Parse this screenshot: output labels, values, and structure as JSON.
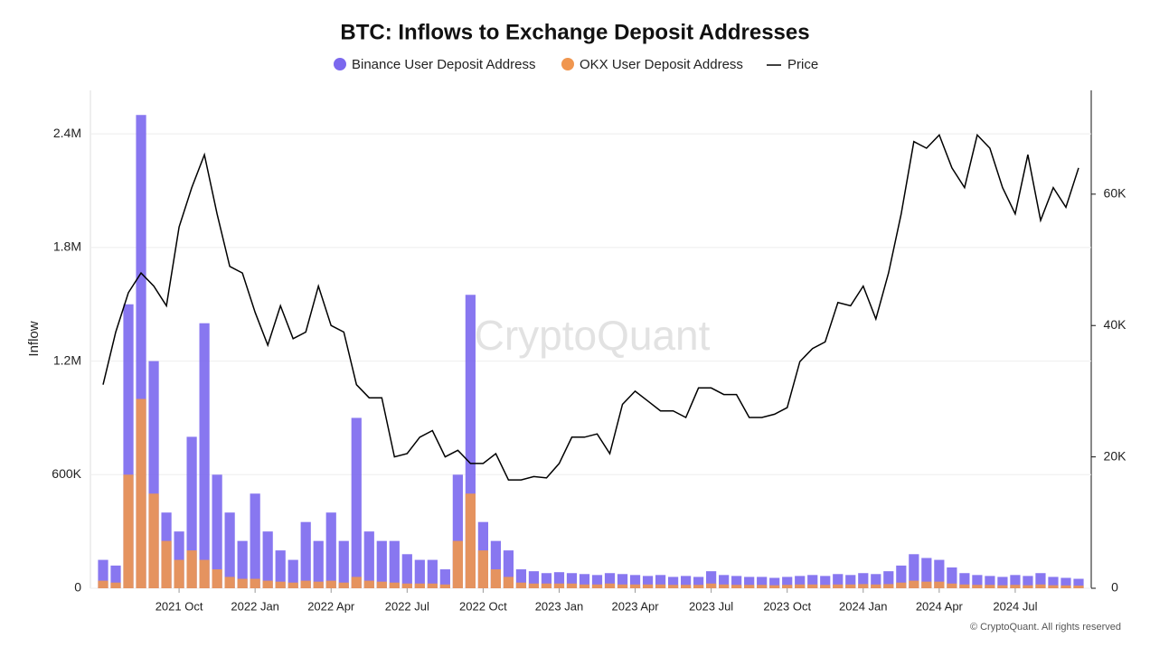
{
  "chart_data": {
    "type": "combo",
    "title": "BTC: Inflows to Exchange Deposit Addresses",
    "y_label": "Inflow",
    "watermark": "CryptoQuant",
    "footer": "© CryptoQuant. All rights reserved",
    "grid": true,
    "categories": [
      null,
      null,
      null,
      null,
      null,
      null,
      "2021 Oct",
      null,
      null,
      null,
      null,
      null,
      "2022 Jan",
      null,
      null,
      null,
      null,
      null,
      "2022 Apr",
      null,
      null,
      null,
      null,
      null,
      "2022 Jul",
      null,
      null,
      null,
      null,
      null,
      "2022 Oct",
      null,
      null,
      null,
      null,
      null,
      "2023 Jan",
      null,
      null,
      null,
      null,
      null,
      "2023 Apr",
      null,
      null,
      null,
      null,
      null,
      "2023 Jul",
      null,
      null,
      null,
      null,
      null,
      "2023 Oct",
      null,
      null,
      null,
      null,
      null,
      "2024 Jan",
      null,
      null,
      null,
      null,
      null,
      "2024 Apr",
      null,
      null,
      null,
      null,
      null,
      "2024 Jul",
      null,
      null,
      null,
      null,
      null
    ],
    "ylim": [
      0,
      2630000
    ],
    "yticks": [
      {
        "value": 0,
        "label": "0"
      },
      {
        "value": 600000,
        "label": "600K"
      },
      {
        "value": 1200000,
        "label": "1.2M"
      },
      {
        "value": 1800000,
        "label": "1.8M"
      },
      {
        "value": 2400000,
        "label": "2.4M"
      }
    ],
    "y2lim": [
      0,
      75800
    ],
    "y2ticks": [
      {
        "value": 0,
        "label": "0"
      },
      {
        "value": 20000,
        "label": "20K"
      },
      {
        "value": 40000,
        "label": "40K"
      },
      {
        "value": 60000,
        "label": "60K"
      }
    ],
    "series": [
      {
        "name": "Binance User Deposit Address",
        "type": "bar",
        "color": "#7b68ee",
        "values": [
          150000,
          120000,
          1500000,
          2500000,
          1200000,
          400000,
          300000,
          800000,
          1400000,
          600000,
          400000,
          250000,
          500000,
          300000,
          200000,
          150000,
          350000,
          250000,
          400000,
          250000,
          900000,
          300000,
          250000,
          250000,
          180000,
          150000,
          150000,
          100000,
          600000,
          1550000,
          350000,
          250000,
          200000,
          100000,
          90000,
          80000,
          85000,
          80000,
          75000,
          70000,
          80000,
          75000,
          70000,
          65000,
          70000,
          60000,
          65000,
          60000,
          90000,
          70000,
          65000,
          60000,
          60000,
          55000,
          60000,
          65000,
          70000,
          65000,
          75000,
          70000,
          80000,
          75000,
          90000,
          120000,
          180000,
          160000,
          150000,
          110000,
          80000,
          70000,
          65000,
          60000,
          70000,
          65000,
          80000,
          60000,
          55000,
          50000
        ]
      },
      {
        "name": "OKX User Deposit Address",
        "type": "bar",
        "color": "#f0964f",
        "values": [
          40000,
          30000,
          600000,
          1000000,
          500000,
          250000,
          150000,
          200000,
          150000,
          100000,
          60000,
          50000,
          50000,
          40000,
          35000,
          30000,
          40000,
          35000,
          40000,
          30000,
          60000,
          40000,
          35000,
          30000,
          25000,
          25000,
          25000,
          20000,
          250000,
          500000,
          200000,
          100000,
          60000,
          30000,
          25000,
          25000,
          25000,
          25000,
          20000,
          20000,
          25000,
          20000,
          20000,
          20000,
          20000,
          18000,
          18000,
          18000,
          25000,
          20000,
          18000,
          18000,
          18000,
          16000,
          18000,
          20000,
          20000,
          18000,
          20000,
          20000,
          22000,
          20000,
          22000,
          30000,
          40000,
          35000,
          35000,
          25000,
          20000,
          18000,
          18000,
          16000,
          18000,
          16000,
          20000,
          16000,
          15000,
          14000
        ]
      },
      {
        "name": "Price",
        "type": "line",
        "color": "#000000",
        "axis": "y2",
        "values": [
          31000,
          39000,
          45000,
          48000,
          46000,
          43000,
          55000,
          61000,
          66000,
          57000,
          49000,
          48000,
          42000,
          37000,
          43000,
          38000,
          39000,
          46000,
          40000,
          39000,
          31000,
          29000,
          29000,
          20000,
          20500,
          23000,
          24000,
          20000,
          21000,
          19000,
          19000,
          20500,
          16500,
          16500,
          17000,
          16800,
          19000,
          23000,
          23000,
          23500,
          20500,
          28000,
          30000,
          28500,
          27000,
          27000,
          26000,
          30500,
          30500,
          29500,
          29500,
          26000,
          26000,
          26500,
          27500,
          34500,
          36500,
          37500,
          43500,
          43000,
          46000,
          41000,
          48000,
          57000,
          68000,
          67000,
          69000,
          64000,
          61000,
          69000,
          67000,
          61000,
          57000,
          66000,
          56000,
          61000,
          58000,
          64000
        ]
      }
    ]
  }
}
